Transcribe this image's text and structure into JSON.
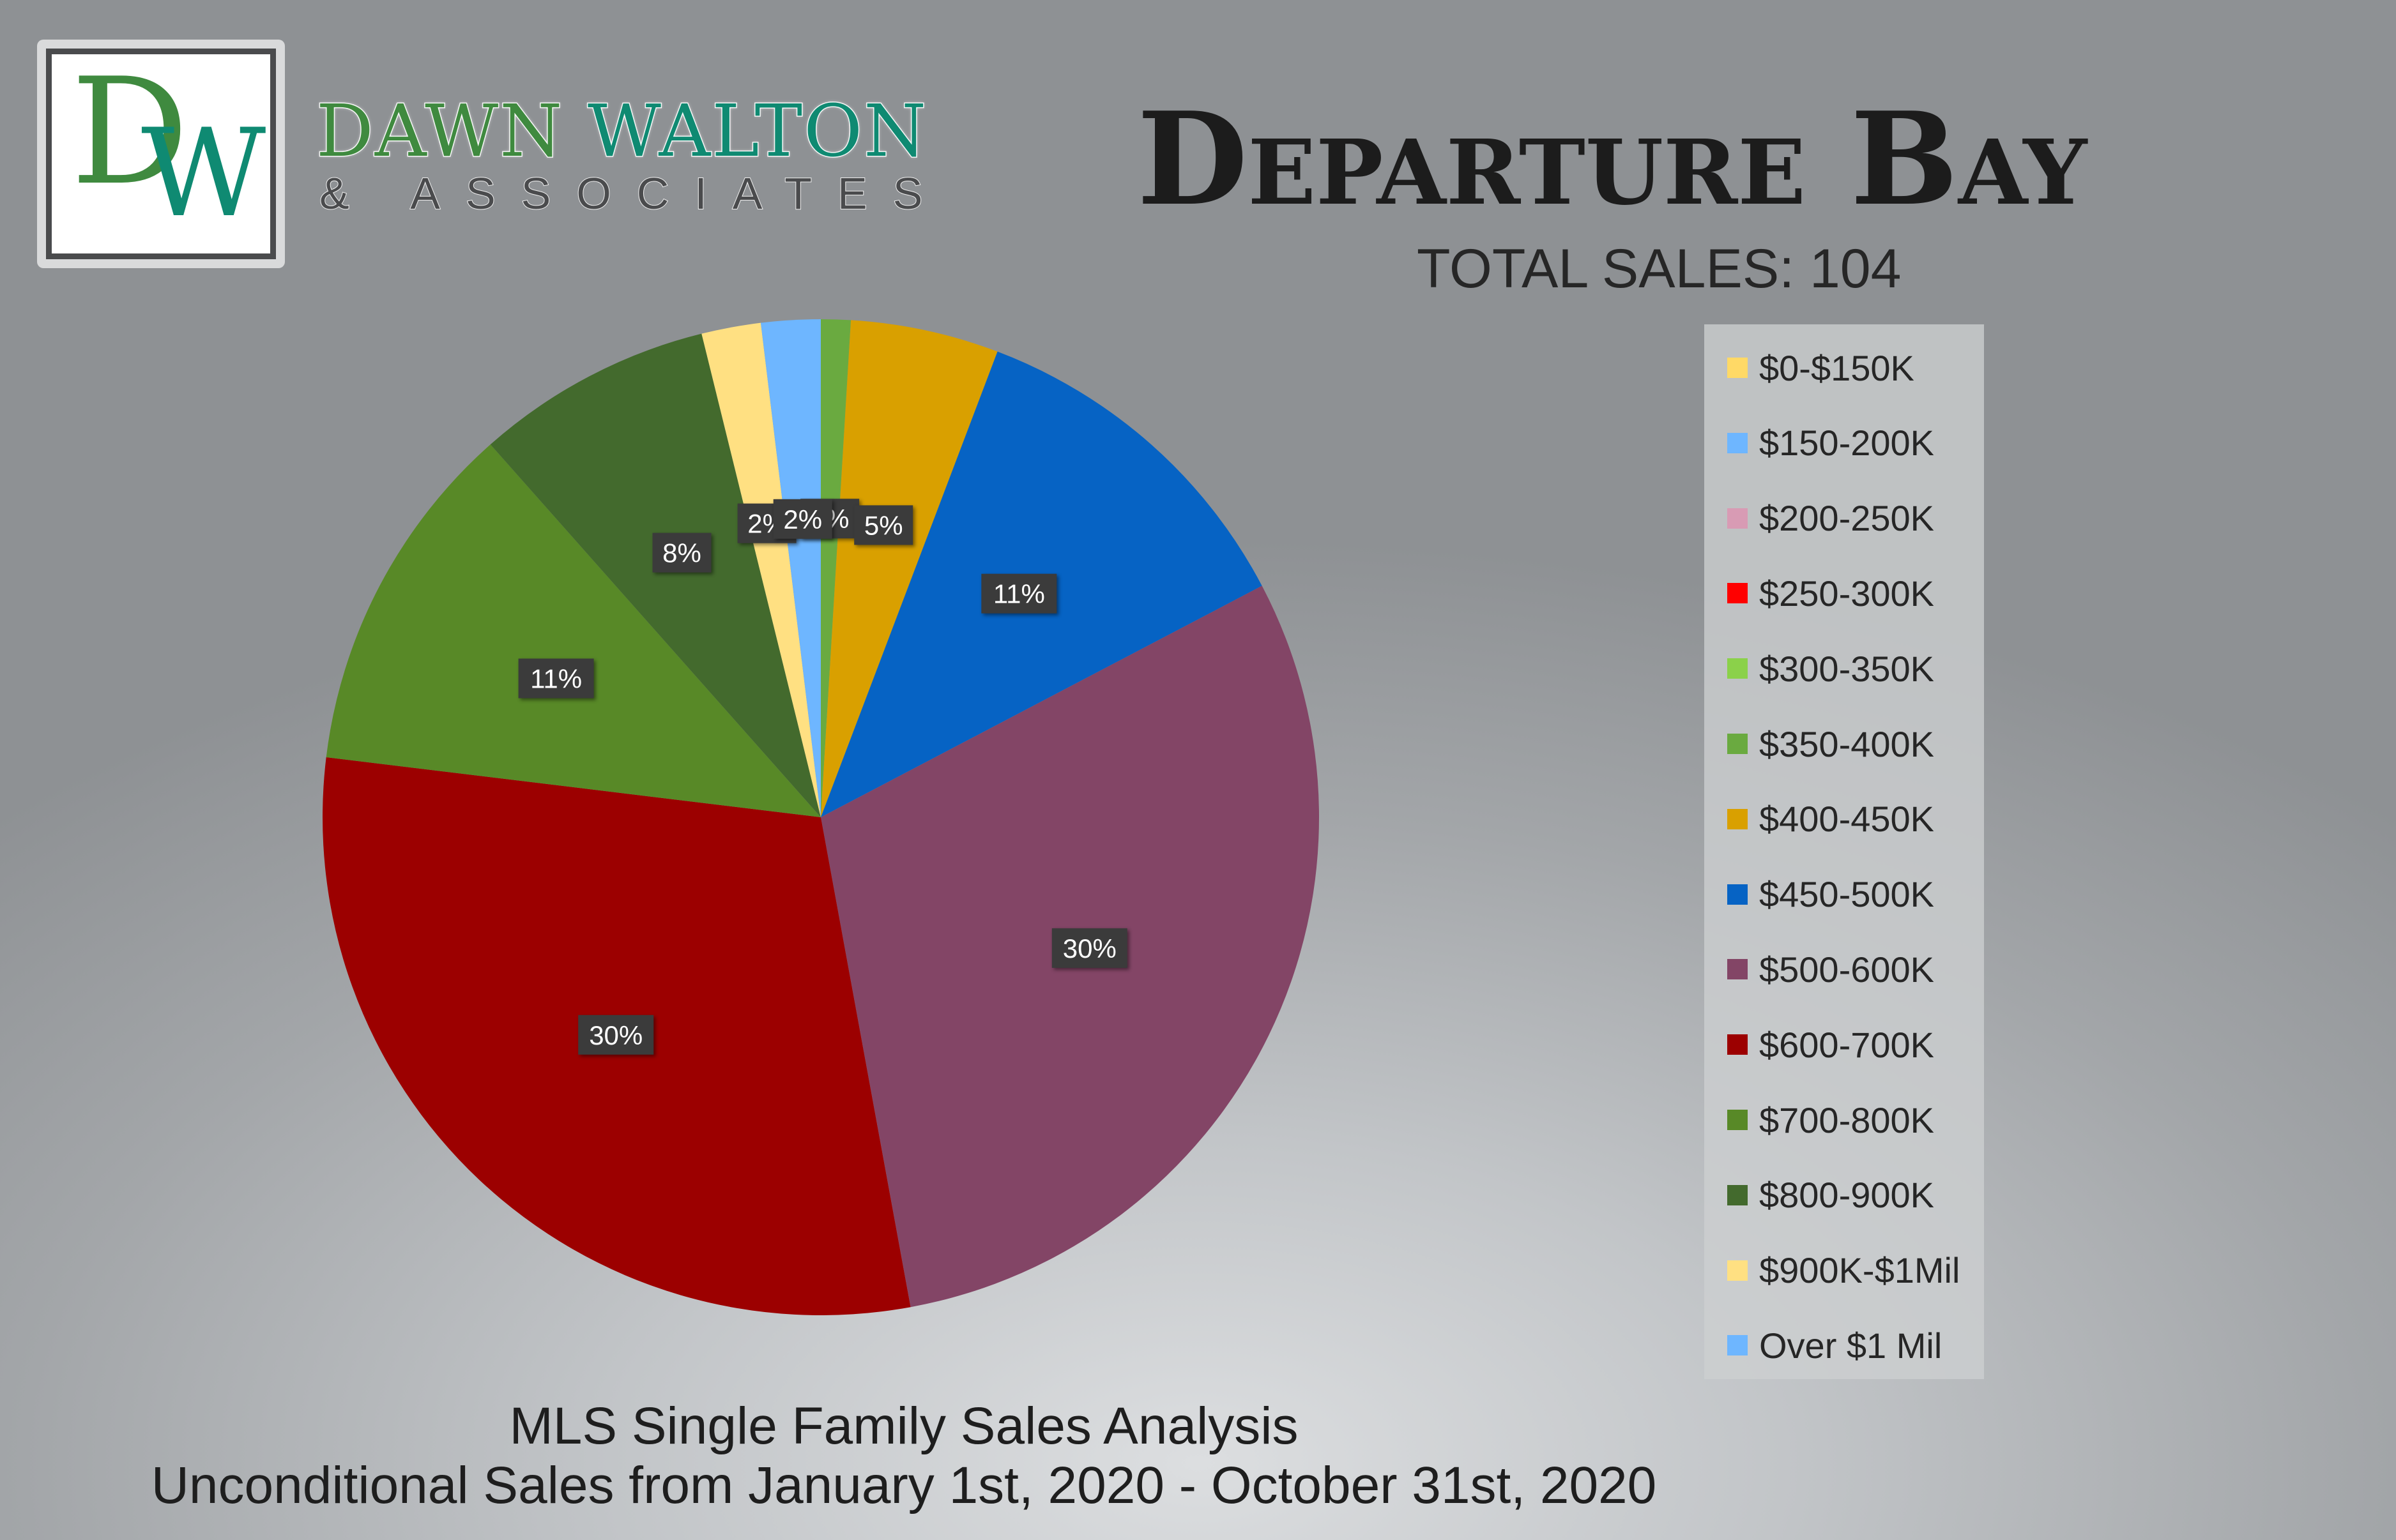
{
  "brand": {
    "logo_letter_d": "D",
    "logo_letter_w": "W",
    "name_first": "DAWN",
    "name_last": "WALTON",
    "subtitle": "& ASSOCIATES"
  },
  "chart_data": {
    "type": "pie",
    "title": "Departure Bay",
    "subtitle": "TOTAL SALES: 104",
    "footer_line1": "MLS Single Family Sales Analysis",
    "footer_line2": "Unconditional Sales from January 1st, 2020 - October 31st, 2020",
    "legend_position": "right",
    "label_color": "#ffffff",
    "label_bg": "#3b3b3b",
    "slices": [
      {
        "label": "$0-$150K",
        "value": 0,
        "pct_label": "",
        "color": "#ffd966"
      },
      {
        "label": "$150-200K",
        "value": 0,
        "pct_label": "",
        "color": "#6eb6ff"
      },
      {
        "label": "$200-250K",
        "value": 0,
        "pct_label": "",
        "color": "#d89bb4"
      },
      {
        "label": "$250-300K",
        "value": 0,
        "pct_label": "",
        "color": "#ff0000"
      },
      {
        "label": "$300-350K",
        "value": 0,
        "pct_label": "",
        "color": "#8bd14a"
      },
      {
        "label": "$350-400K",
        "value": 1,
        "pct_label": "1%",
        "color": "#6aaa40"
      },
      {
        "label": "$400-450K",
        "value": 5,
        "pct_label": "5%",
        "color": "#d9a000"
      },
      {
        "label": "$450-500K",
        "value": 12,
        "pct_label": "11%",
        "color": "#0663c4"
      },
      {
        "label": "$500-600K",
        "value": 31,
        "pct_label": "30%",
        "color": "#834566"
      },
      {
        "label": "$600-700K",
        "value": 31,
        "pct_label": "30%",
        "color": "#9c0000"
      },
      {
        "label": "$700-800K",
        "value": 12,
        "pct_label": "11%",
        "color": "#588927"
      },
      {
        "label": "$800-900K",
        "value": 8,
        "pct_label": "8%",
        "color": "#436a2d"
      },
      {
        "label": "$900K-$1Mil",
        "value": 2,
        "pct_label": "2%",
        "color": "#ffe082"
      },
      {
        "label": "Over $1 Mil",
        "value": 2,
        "pct_label": "2%",
        "color": "#6eb6ff"
      }
    ]
  }
}
